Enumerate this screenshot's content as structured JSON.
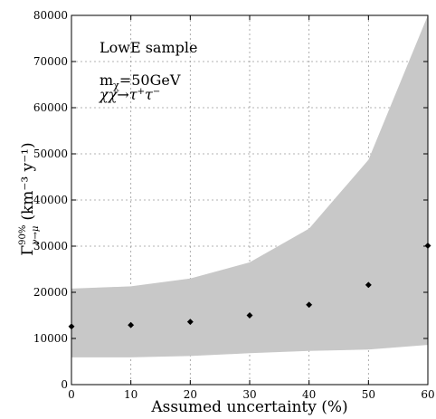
{
  "chart_data": {
    "type": "scatter",
    "xlabel": "Assumed uncertainty (%)",
    "ylabel_main": "Γ",
    "ylabel_sup": "90%",
    "ylabel_sub": "ν→μ",
    "ylabel_unit": "(km⁻³ y⁻¹)",
    "xlim": [
      0,
      60
    ],
    "ylim": [
      0,
      80000
    ],
    "xticks": [
      0,
      10,
      20,
      30,
      40,
      50,
      60
    ],
    "yticks": [
      0,
      10000,
      20000,
      30000,
      40000,
      50000,
      60000,
      70000,
      80000
    ],
    "grid": true,
    "annotations": {
      "sample": "LowE sample",
      "mass": "m",
      "mass_sub": "χ",
      "mass_value": "=50GeV",
      "channel": "χχ→τ",
      "channel_sup1": "+",
      "channel_tau2": "τ",
      "channel_sup2": "−"
    },
    "series": [
      {
        "x": [
          0,
          10,
          20,
          30,
          40,
          50,
          60
        ],
        "values": [
          12600,
          12900,
          13600,
          15000,
          17300,
          21600,
          30100
        ],
        "marker": "diamond",
        "color": "#000000"
      }
    ],
    "band": {
      "x": [
        0,
        10,
        20,
        30,
        40,
        50,
        60
      ],
      "upper": [
        20800,
        21300,
        23000,
        26500,
        33800,
        48700,
        80500
      ],
      "lower": [
        5900,
        5900,
        6200,
        6800,
        7300,
        7600,
        8600
      ],
      "color": "#c8c8c8"
    }
  }
}
